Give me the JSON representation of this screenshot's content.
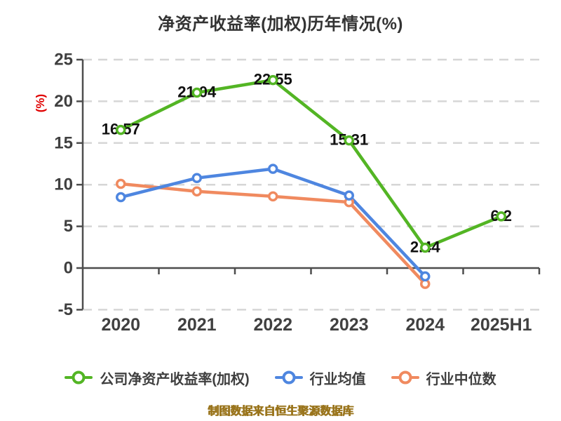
{
  "title": "净资产收益率(加权)历年情况(%)",
  "footer_note": "制图数据来自恒生聚源数据库",
  "colors": {
    "background": "#ffffff",
    "title": "#333333",
    "axis": "#4d4d4d",
    "tick_label": "#404040",
    "grid": "#d6d6d6",
    "y_axis_name": "#e00000",
    "data_label": "#111111",
    "footer": "#9a751d",
    "company_series": "#53b524",
    "industry_avg_series": "#4e86e0",
    "industry_median_series": "#f08a5f"
  },
  "chart_data": {
    "type": "line",
    "title": "净资产收益率(加权)历年情况(%)",
    "ylabel": "(%)",
    "xlabel": "",
    "categories": [
      "2020",
      "2021",
      "2022",
      "2023",
      "2024",
      "2025H1"
    ],
    "yticks": [
      25,
      20,
      15,
      10,
      5,
      0,
      -5
    ],
    "ylim": [
      -5,
      25
    ],
    "grid": "horizontal-dashed",
    "legend_position": "bottom",
    "series": [
      {
        "name": "公司净资产收益率(加权)",
        "color": "#53b524",
        "values": [
          16.57,
          21.04,
          22.55,
          15.31,
          2.44,
          6.2
        ],
        "data_labels": [
          "16.57",
          "21.04",
          "22.55",
          "15.31",
          "2.44",
          "6.2"
        ],
        "show_labels": true
      },
      {
        "name": "行业均值",
        "color": "#4e86e0",
        "values": [
          8.5,
          10.8,
          11.9,
          8.7,
          -1.0,
          null
        ],
        "data_labels": [],
        "show_labels": false
      },
      {
        "name": "行业中位数",
        "color": "#f08a5f",
        "values": [
          10.1,
          9.2,
          8.6,
          7.9,
          -1.9,
          null
        ],
        "data_labels": [],
        "show_labels": false
      }
    ]
  }
}
